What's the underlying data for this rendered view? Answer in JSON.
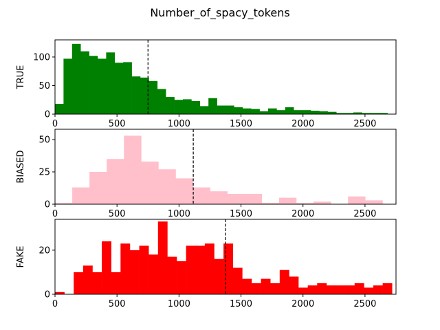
{
  "title": "Number_of_spacy_tokens",
  "chart_data": [
    {
      "type": "bar",
      "ylabel": "TRUE",
      "color": "#008000",
      "xlim": [
        0,
        2750
      ],
      "ylim": [
        0,
        130
      ],
      "xticks": [
        "0",
        "500",
        "1000",
        "1500",
        "2000",
        "2500"
      ],
      "yticks": [
        "0",
        "50",
        "100"
      ],
      "bin_width": 68.75,
      "values": [
        18,
        97,
        123,
        110,
        102,
        97,
        108,
        90,
        91,
        66,
        64,
        58,
        44,
        30,
        25,
        26,
        23,
        14,
        28,
        15,
        15,
        12,
        10,
        9,
        5,
        10,
        7,
        12,
        7,
        7,
        6,
        5,
        4,
        2,
        2,
        3,
        2,
        2,
        2
      ],
      "mean_line": 750
    },
    {
      "type": "bar",
      "ylabel": "BIASED",
      "color": "#FFC0CB",
      "xlim": [
        0,
        2750
      ],
      "ylim": [
        0,
        58
      ],
      "xticks": [
        "0",
        "500",
        "1000",
        "1500",
        "2000",
        "2500"
      ],
      "yticks": [
        "0",
        "25",
        "50"
      ],
      "bin_width": 139,
      "values": [
        1,
        13,
        25,
        35,
        53,
        33,
        27,
        20,
        13,
        10,
        8,
        8,
        1,
        5,
        1,
        2,
        0,
        6,
        3
      ],
      "mean_line": 1115
    },
    {
      "type": "bar",
      "ylabel": "FAKE",
      "color": "#FF0000",
      "xlim": [
        0,
        2750
      ],
      "ylim": [
        0,
        34
      ],
      "xticks": [
        "0",
        "500",
        "1000",
        "1500",
        "2000",
        "2500"
      ],
      "yticks": [
        "0",
        "20"
      ],
      "bin_width": 75.5,
      "values": [
        1,
        0,
        10,
        13,
        10,
        24,
        10,
        23,
        20,
        22,
        18,
        33,
        17,
        15,
        22,
        22,
        23,
        16,
        23,
        12,
        7,
        5,
        7,
        5,
        11,
        8,
        3,
        4,
        5,
        4,
        4,
        4,
        5,
        3,
        4,
        5
      ],
      "mean_line": 1375
    }
  ]
}
